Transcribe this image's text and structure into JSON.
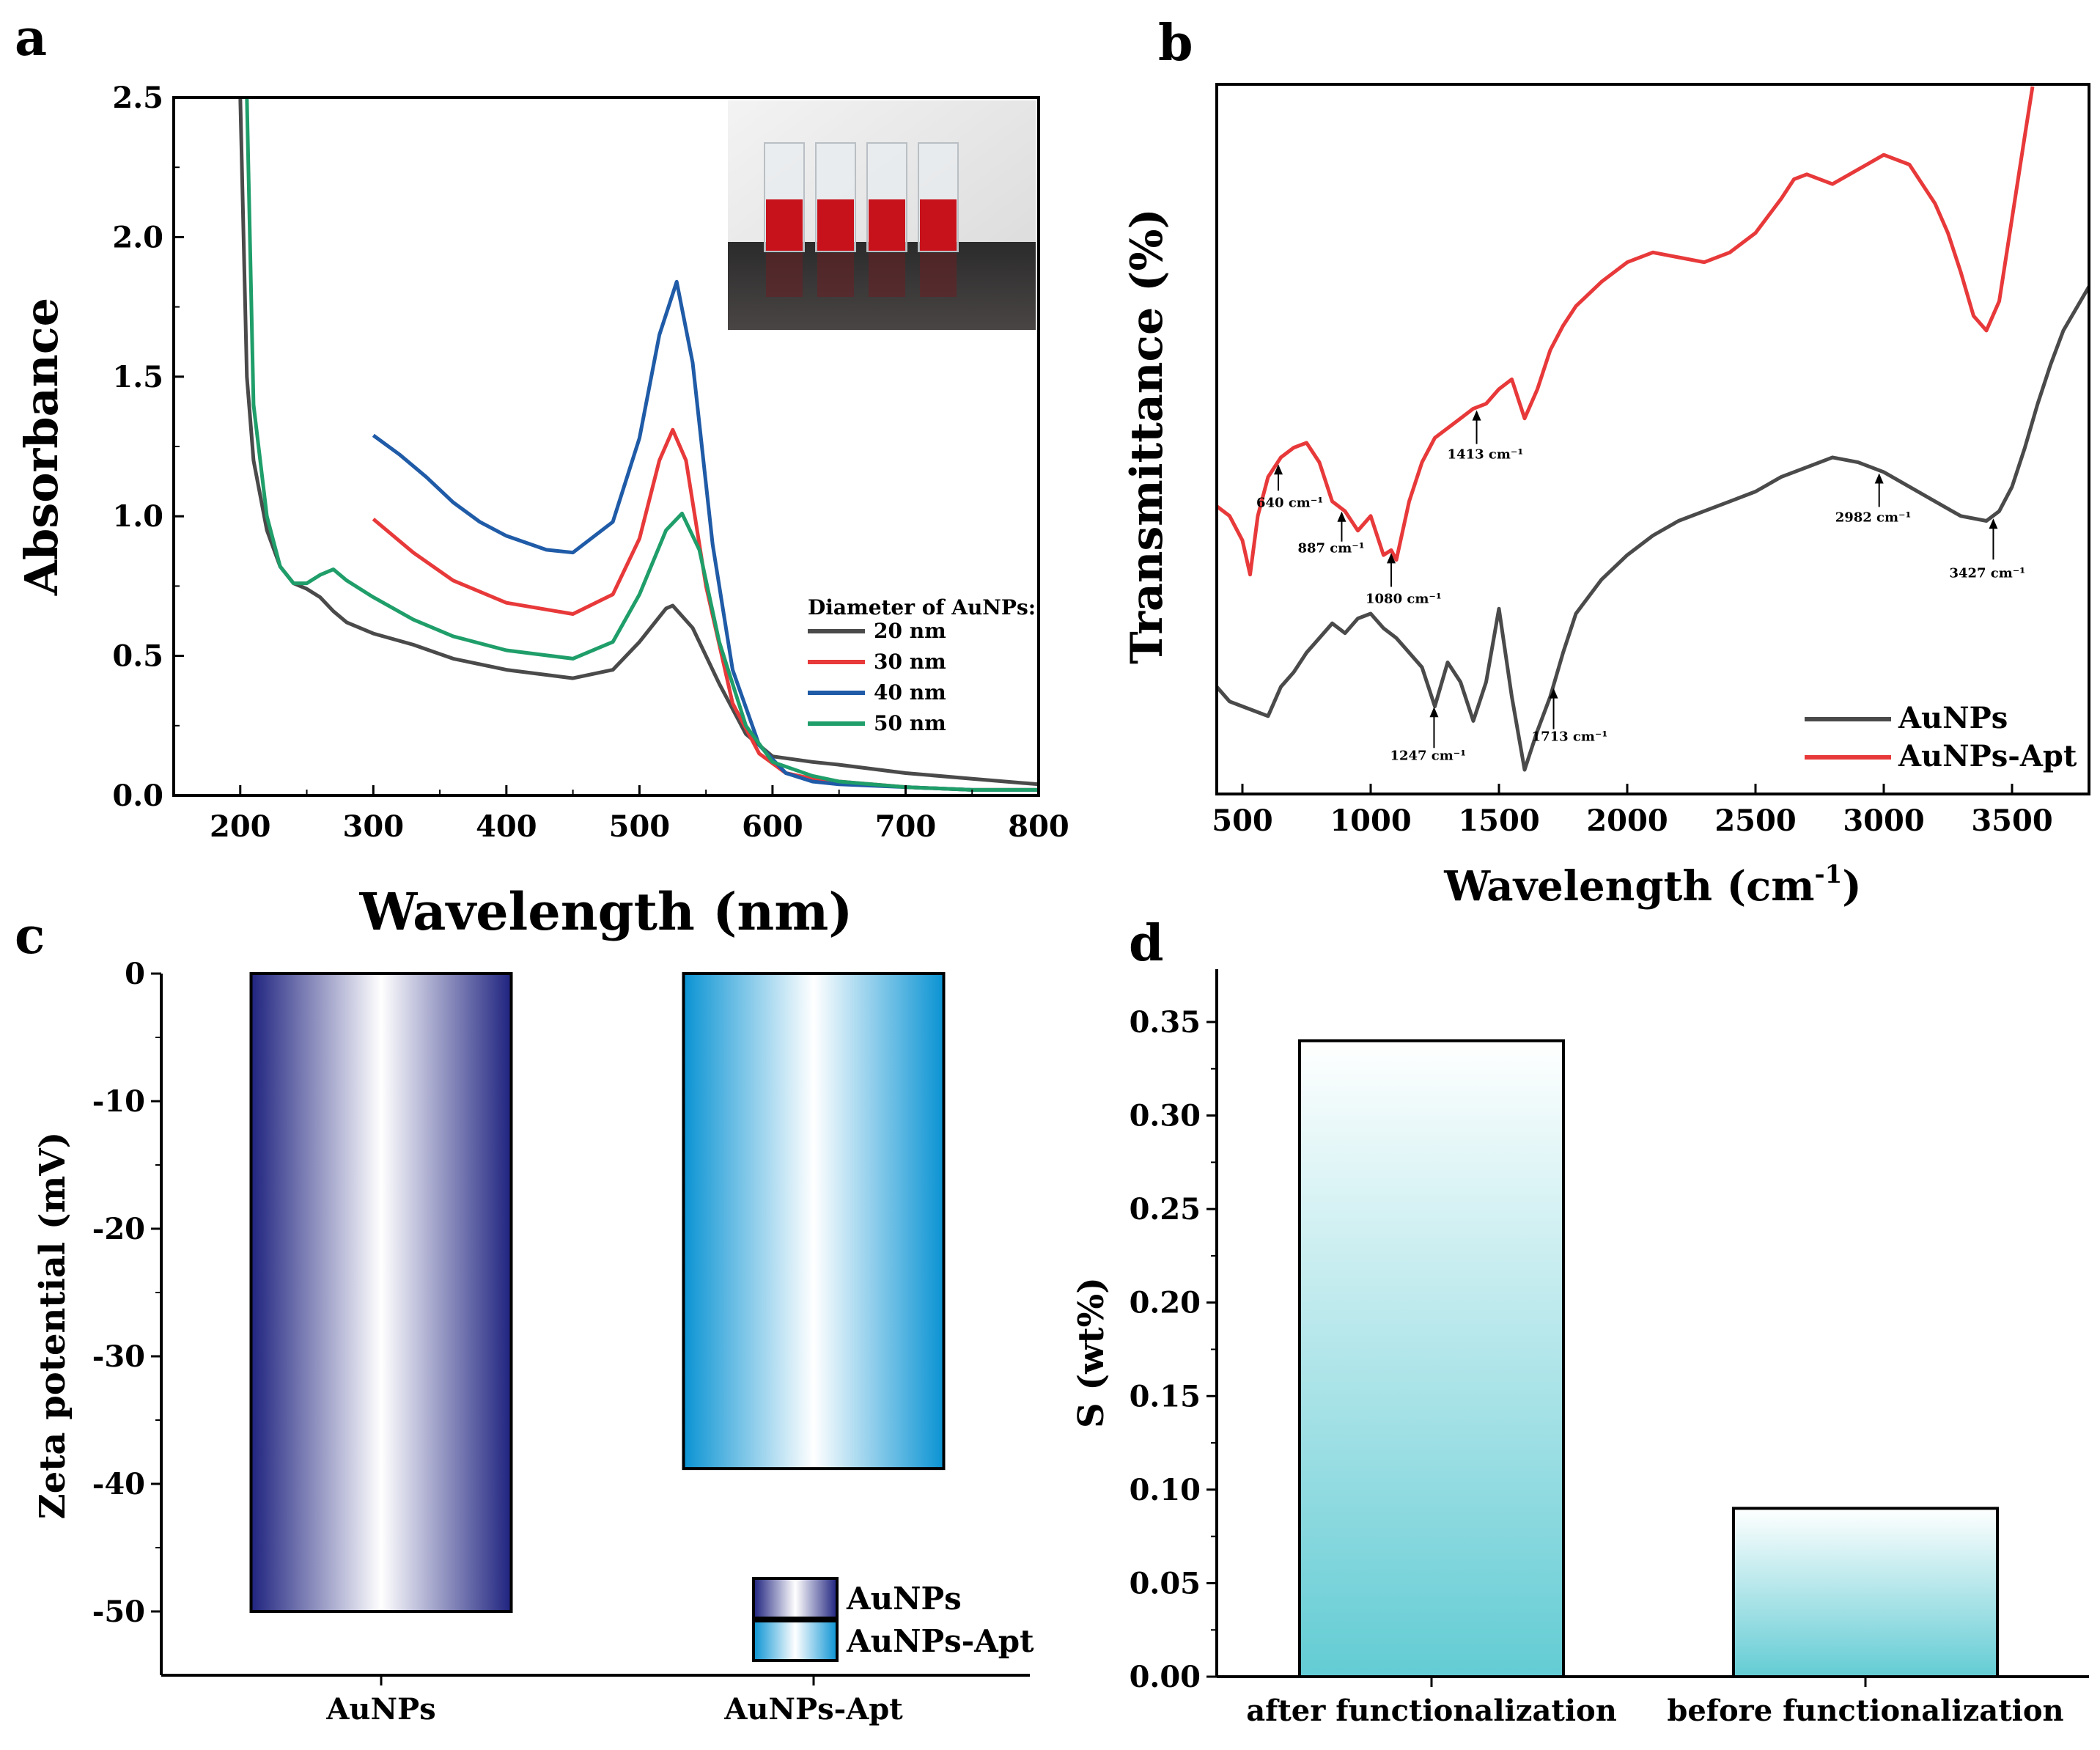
{
  "panels": {
    "a": "a",
    "b": "b",
    "c": "c",
    "d": "d"
  },
  "chart_data": [
    {
      "id": "a",
      "type": "line",
      "xlabel": "Wavelength (nm)",
      "ylabel": "Absorbance",
      "xlim": [
        150,
        800
      ],
      "ylim": [
        0,
        2.5
      ],
      "xticks": [
        200,
        300,
        400,
        500,
        600,
        700,
        800
      ],
      "yticks": [
        "0.0",
        "0.5",
        "1.0",
        "1.5",
        "2.0",
        "2.5"
      ],
      "legend_title": "Diameter of AuNPs:",
      "legend_position": "right",
      "inset": "photo of four cuvettes containing red AuNP solutions",
      "series": [
        {
          "name": "20 nm",
          "color": "#4a4a4a",
          "x": [
            200,
            205,
            210,
            220,
            230,
            240,
            250,
            260,
            270,
            280,
            300,
            330,
            360,
            400,
            450,
            480,
            500,
            520,
            525,
            540,
            560,
            580,
            600,
            630,
            650,
            700,
            750,
            800
          ],
          "y": [
            2.5,
            1.5,
            1.2,
            0.95,
            0.82,
            0.76,
            0.74,
            0.71,
            0.66,
            0.62,
            0.58,
            0.54,
            0.49,
            0.45,
            0.42,
            0.45,
            0.55,
            0.67,
            0.68,
            0.6,
            0.4,
            0.22,
            0.14,
            0.12,
            0.11,
            0.08,
            0.06,
            0.04
          ]
        },
        {
          "name": "30 nm",
          "color": "#e8393a",
          "x": [
            300,
            330,
            360,
            400,
            450,
            480,
            500,
            515,
            525,
            535,
            550,
            570,
            590,
            610,
            630,
            650,
            700,
            750,
            800
          ],
          "y": [
            0.99,
            0.87,
            0.77,
            0.69,
            0.65,
            0.72,
            0.92,
            1.2,
            1.31,
            1.2,
            0.75,
            0.33,
            0.15,
            0.08,
            0.06,
            0.05,
            0.03,
            0.02,
            0.02
          ]
        },
        {
          "name": "40 nm",
          "color": "#1f5ba7",
          "x": [
            300,
            320,
            340,
            360,
            380,
            400,
            430,
            450,
            480,
            500,
            515,
            528,
            540,
            555,
            570,
            590,
            610,
            630,
            650,
            700,
            750,
            800
          ],
          "y": [
            1.29,
            1.22,
            1.14,
            1.05,
            0.98,
            0.93,
            0.88,
            0.87,
            0.98,
            1.28,
            1.65,
            1.84,
            1.55,
            0.9,
            0.45,
            0.18,
            0.08,
            0.05,
            0.04,
            0.03,
            0.02,
            0.02
          ]
        },
        {
          "name": "50 nm",
          "color": "#1f9e6a",
          "x": [
            205,
            210,
            220,
            230,
            240,
            250,
            260,
            270,
            280,
            300,
            330,
            360,
            400,
            450,
            480,
            500,
            520,
            532,
            545,
            560,
            580,
            600,
            630,
            650,
            700,
            750,
            800
          ],
          "y": [
            2.5,
            1.4,
            1.0,
            0.82,
            0.76,
            0.76,
            0.79,
            0.81,
            0.77,
            0.71,
            0.63,
            0.57,
            0.52,
            0.49,
            0.55,
            0.72,
            0.95,
            1.01,
            0.88,
            0.55,
            0.25,
            0.12,
            0.07,
            0.05,
            0.03,
            0.02,
            0.02
          ]
        }
      ]
    },
    {
      "id": "b",
      "type": "line",
      "xlabel": "Wavelength (cm",
      "xlabel_sup": "-1",
      "xlabel_end": ")",
      "ylabel": "Transmittance (%)",
      "xlim": [
        400,
        3800
      ],
      "xticks": [
        500,
        1000,
        1500,
        2000,
        2500,
        3000,
        3500
      ],
      "legend_position": "bottom-right",
      "series": [
        {
          "name": "AuNPs",
          "color": "#4a4a4a",
          "x": [
            400,
            450,
            500,
            550,
            600,
            650,
            700,
            750,
            800,
            850,
            900,
            950,
            1000,
            1050,
            1100,
            1150,
            1200,
            1250,
            1300,
            1350,
            1400,
            1450,
            1500,
            1550,
            1600,
            1650,
            1700,
            1750,
            1800,
            1900,
            2000,
            2100,
            2200,
            2300,
            2400,
            2500,
            2600,
            2700,
            2800,
            2900,
            3000,
            3100,
            3200,
            3300,
            3400,
            3450,
            3500,
            3550,
            3600,
            3650,
            3700,
            3800
          ],
          "y": [
            0.17,
            0.14,
            0.13,
            0.12,
            0.11,
            0.17,
            0.2,
            0.24,
            0.27,
            0.3,
            0.28,
            0.31,
            0.32,
            0.29,
            0.27,
            0.24,
            0.21,
            0.13,
            0.22,
            0.18,
            0.1,
            0.18,
            0.33,
            0.15,
            0.0,
            0.08,
            0.15,
            0.24,
            0.32,
            0.39,
            0.44,
            0.48,
            0.51,
            0.53,
            0.55,
            0.57,
            0.6,
            0.62,
            0.64,
            0.63,
            0.61,
            0.58,
            0.55,
            0.52,
            0.51,
            0.53,
            0.58,
            0.66,
            0.75,
            0.83,
            0.9,
            0.99
          ]
        },
        {
          "name": "AuNPs-Apt",
          "color": "#e8393a",
          "x": [
            400,
            450,
            500,
            530,
            560,
            600,
            650,
            700,
            750,
            800,
            850,
            900,
            950,
            1000,
            1050,
            1080,
            1100,
            1150,
            1200,
            1250,
            1300,
            1350,
            1400,
            1450,
            1500,
            1550,
            1600,
            1650,
            1700,
            1750,
            1800,
            1900,
            2000,
            2100,
            2200,
            2300,
            2400,
            2500,
            2600,
            2650,
            2700,
            2800,
            2900,
            3000,
            3100,
            3200,
            3250,
            3300,
            3350,
            3400,
            3450,
            3500,
            3550,
            3580
          ],
          "y": [
            0.54,
            0.52,
            0.47,
            0.4,
            0.52,
            0.6,
            0.64,
            0.66,
            0.67,
            0.63,
            0.55,
            0.53,
            0.49,
            0.52,
            0.44,
            0.45,
            0.43,
            0.55,
            0.63,
            0.68,
            0.7,
            0.72,
            0.74,
            0.75,
            0.78,
            0.8,
            0.72,
            0.78,
            0.86,
            0.91,
            0.95,
            1.0,
            1.04,
            1.06,
            1.05,
            1.04,
            1.06,
            1.1,
            1.17,
            1.21,
            1.22,
            1.2,
            1.23,
            1.26,
            1.24,
            1.16,
            1.1,
            1.02,
            0.93,
            0.9,
            0.96,
            1.13,
            1.3,
            1.4
          ]
        }
      ],
      "annotations": [
        {
          "text": "640 cm⁻¹",
          "x": 640,
          "series": "AuNPs-Apt"
        },
        {
          "text": "887 cm⁻¹",
          "x": 887,
          "series": "AuNPs-Apt"
        },
        {
          "text": "1080 cm⁻¹",
          "x": 1080,
          "series": "AuNPs-Apt"
        },
        {
          "text": "1413 cm⁻¹",
          "x": 1413,
          "series": "AuNPs-Apt"
        },
        {
          "text": "1247 cm⁻¹",
          "x": 1247,
          "series": "AuNPs"
        },
        {
          "text": "1713 cm⁻¹",
          "x": 1713,
          "series": "AuNPs"
        },
        {
          "text": "2982 cm⁻¹",
          "x": 2982,
          "series": "AuNPs"
        },
        {
          "text": "3427 cm⁻¹",
          "x": 3427,
          "series": "AuNPs"
        }
      ]
    },
    {
      "id": "c",
      "type": "bar",
      "xlabel": "",
      "ylabel": "Zeta potential (mV)",
      "ylim": [
        -55,
        0
      ],
      "yticks": [
        "0",
        "-10",
        "-20",
        "-30",
        "-40",
        "-50"
      ],
      "categories": [
        "AuNPs",
        "AuNPs-Apt"
      ],
      "values": [
        -50.0,
        -38.8
      ],
      "colors": [
        "#2a2f8a",
        "#0f9ad6"
      ],
      "legend": [
        "AuNPs",
        "AuNPs-Apt"
      ],
      "legend_position": "bottom-right"
    },
    {
      "id": "d",
      "type": "bar",
      "xlabel": "",
      "ylabel": "S (wt%)",
      "ylim": [
        0,
        0.375
      ],
      "yticks": [
        "0.00",
        "0.05",
        "0.10",
        "0.15",
        "0.20",
        "0.25",
        "0.30",
        "0.35"
      ],
      "categories": [
        "after functionalization",
        "before functionalization"
      ],
      "values": [
        0.34,
        0.09
      ],
      "colors": [
        "#6fcfd6",
        "#6fcfd6"
      ]
    }
  ]
}
